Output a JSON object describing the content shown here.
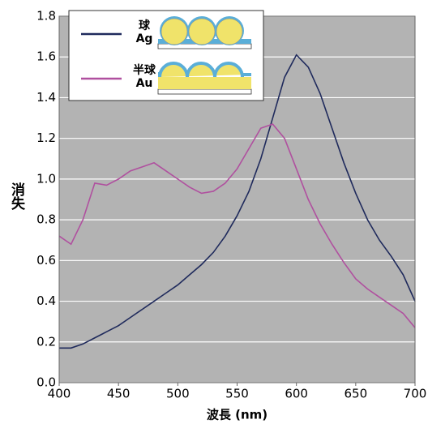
{
  "chart_data": {
    "type": "line",
    "x_label": "波長 (nm)",
    "y_label": "消失",
    "x": [
      400,
      410,
      420,
      430,
      440,
      450,
      460,
      470,
      480,
      490,
      500,
      510,
      520,
      530,
      540,
      550,
      560,
      570,
      580,
      590,
      600,
      610,
      620,
      630,
      640,
      650,
      660,
      670,
      680,
      690,
      700
    ],
    "series": [
      {
        "name": "球\nAg",
        "color": "#1f2a5c",
        "values": [
          0.17,
          0.17,
          0.19,
          0.22,
          0.25,
          0.28,
          0.32,
          0.36,
          0.4,
          0.44,
          0.48,
          0.53,
          0.58,
          0.64,
          0.72,
          0.82,
          0.94,
          1.1,
          1.3,
          1.5,
          1.61,
          1.55,
          1.42,
          1.25,
          1.08,
          0.93,
          0.8,
          0.7,
          0.62,
          0.53,
          0.4
        ]
      },
      {
        "name": "半球\nAu",
        "color": "#b0509f",
        "values": [
          0.72,
          0.68,
          0.8,
          0.98,
          0.97,
          1.0,
          1.04,
          1.06,
          1.08,
          1.04,
          1.0,
          0.96,
          0.93,
          0.94,
          0.98,
          1.05,
          1.15,
          1.25,
          1.27,
          1.2,
          1.05,
          0.9,
          0.78,
          0.68,
          0.59,
          0.51,
          0.46,
          0.42,
          0.38,
          0.34,
          0.27
        ]
      }
    ],
    "xlim": [
      400,
      700
    ],
    "xticks": [
      400,
      450,
      500,
      550,
      600,
      650,
      700
    ],
    "ylim": [
      0,
      1.8
    ],
    "yticks": [
      {
        "value": 0,
        "label": "0.0"
      },
      0.2,
      0.4,
      0.6,
      0.8,
      {
        "value": 1,
        "label": "1.0"
      },
      1.2,
      1.4,
      1.6,
      1.8
    ],
    "grid": true
  }
}
